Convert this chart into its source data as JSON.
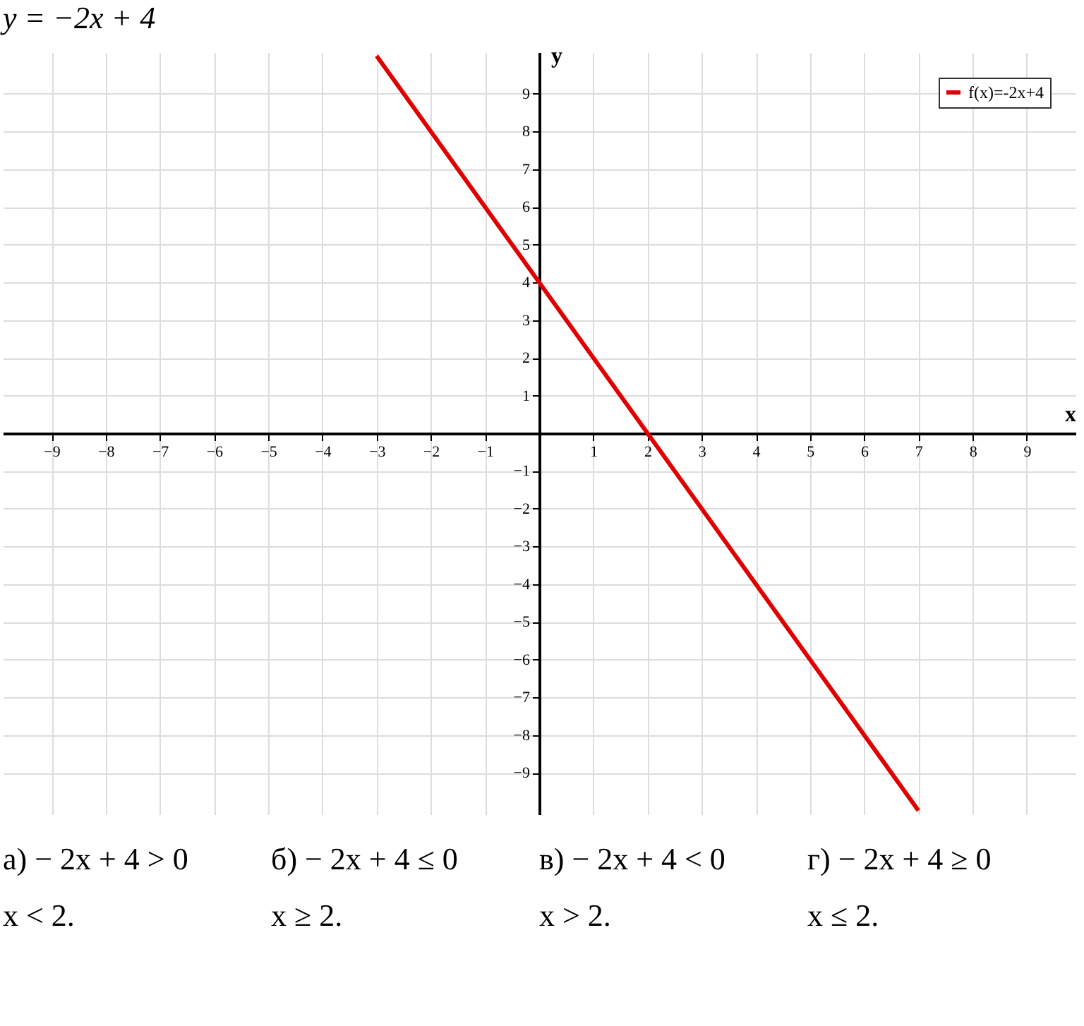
{
  "chart_data": {
    "type": "line",
    "title": "y = −2x + 4",
    "xlabel": "x",
    "ylabel": "y",
    "x": [
      -3,
      7
    ],
    "series": [
      {
        "name": "f(x)=-2x+4",
        "color": "#e00000",
        "values": [
          10,
          -10
        ]
      }
    ],
    "xlim": [
      -9.9,
      9.9
    ],
    "ylim": [
      -10.1,
      10.1
    ],
    "xticks": [
      -9,
      -8,
      -7,
      -6,
      -5,
      -4,
      -3,
      -2,
      -1,
      1,
      2,
      3,
      4,
      5,
      6,
      7,
      8,
      9
    ],
    "yticks": [
      -9,
      -8,
      -7,
      -6,
      -5,
      -4,
      -3,
      -2,
      -1,
      1,
      2,
      3,
      4,
      5,
      6,
      7,
      8,
      9
    ],
    "grid": true,
    "legend": "top right",
    "marker": "none",
    "line_style": "solid",
    "annotations": [
      "а) − 2x + 4 > 0",
      "б) − 2x + 4 ≤ 0",
      "в) − 2x + 4 < 0",
      "г) − 2x + 4 ≥ 0",
      "x < 2.",
      "x ≥ 2.",
      "x > 2.",
      "x ≤ 2."
    ]
  }
}
